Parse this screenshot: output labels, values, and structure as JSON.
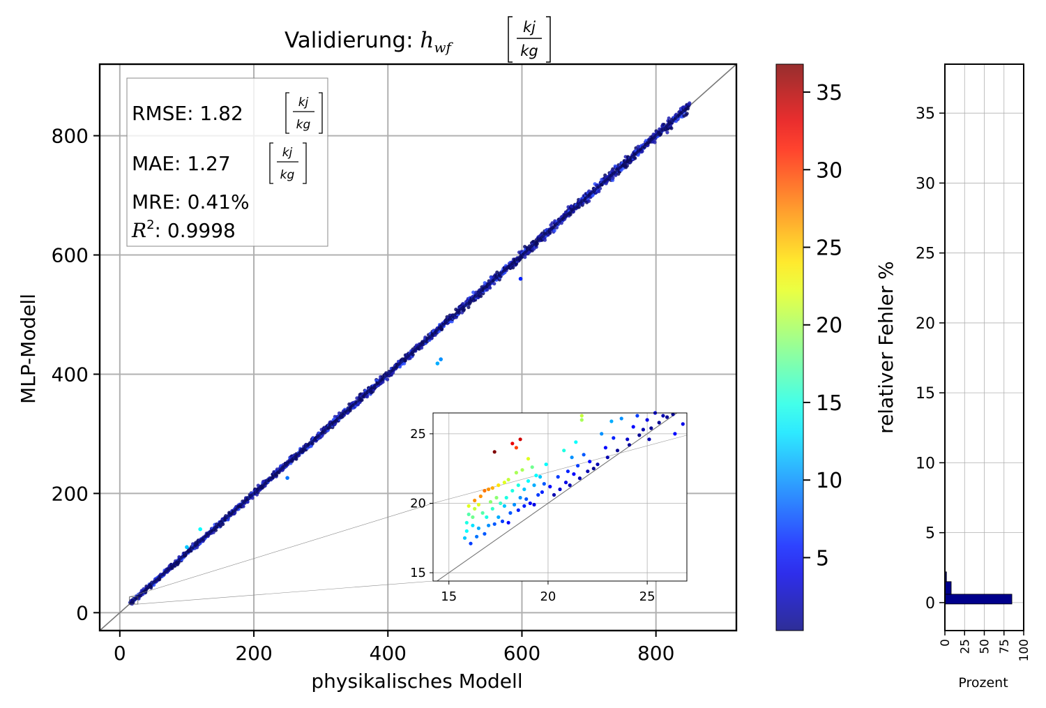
{
  "chart_data": [
    {
      "type": "scatter",
      "title": "Validierung: ",
      "title_symbol": "h",
      "title_subscript": "wf",
      "unit_numerator": "kj",
      "unit_denominator": "kg",
      "xlabel": "physikalisches Modell",
      "ylabel": "MLP-Modell",
      "xlim": [
        -30,
        920
      ],
      "ylim": [
        -30,
        920
      ],
      "xticks": [
        0,
        200,
        400,
        600,
        800
      ],
      "yticks": [
        0,
        200,
        400,
        600,
        800
      ],
      "grid": true,
      "reference_line": "y = x",
      "color_encoding": "relativer Fehler %",
      "colormap": "jet",
      "point_color": "#1f1fb0",
      "point_color_light": "#2f4fff",
      "point_color_dark": "#0b0b66",
      "x_range_of_points": [
        15,
        850
      ],
      "outliers": [
        {
          "x": 474,
          "y": 418,
          "error": 11
        },
        {
          "x": 479,
          "y": 425,
          "error": 10
        },
        {
          "x": 598,
          "y": 560,
          "error": 6
        },
        {
          "x": 250,
          "y": 226,
          "error": 9
        },
        {
          "x": 120,
          "y": 140,
          "error": 14
        },
        {
          "x": 100,
          "y": 110,
          "error": 12
        }
      ],
      "metrics_box": {
        "rmse_label": "RMSE: 1.82",
        "mae_label": "MAE: 1.27",
        "mre_label": "MRE: 0.41%",
        "r2_symbol": "R",
        "r2_exp": "2",
        "r2_label": ": 0.9998"
      }
    },
    {
      "type": "scatter",
      "role": "inset",
      "xlim": [
        14.2,
        27
      ],
      "ylim": [
        14.4,
        26.5
      ],
      "xticks": [
        15,
        20,
        25
      ],
      "yticks": [
        15,
        20,
        25
      ],
      "grid": true,
      "reference_line": "y = x",
      "points": [
        {
          "x": 15.8,
          "y": 17.5,
          "e": 12
        },
        {
          "x": 15.9,
          "y": 18.0,
          "e": 14
        },
        {
          "x": 15.9,
          "y": 18.6,
          "e": 15
        },
        {
          "x": 16.0,
          "y": 19.2,
          "e": 17
        },
        {
          "x": 16.0,
          "y": 19.8,
          "e": 22
        },
        {
          "x": 16.1,
          "y": 17.1,
          "e": 7
        },
        {
          "x": 16.2,
          "y": 18.4,
          "e": 13
        },
        {
          "x": 16.2,
          "y": 19.0,
          "e": 18
        },
        {
          "x": 16.3,
          "y": 20.2,
          "e": 27
        },
        {
          "x": 16.3,
          "y": 19.6,
          "e": 21
        },
        {
          "x": 16.4,
          "y": 17.6,
          "e": 9
        },
        {
          "x": 16.5,
          "y": 18.2,
          "e": 11
        },
        {
          "x": 16.5,
          "y": 19.9,
          "e": 22
        },
        {
          "x": 16.6,
          "y": 20.5,
          "e": 27
        },
        {
          "x": 16.7,
          "y": 19.3,
          "e": 17
        },
        {
          "x": 16.8,
          "y": 17.8,
          "e": 8
        },
        {
          "x": 16.8,
          "y": 20.9,
          "e": 28
        },
        {
          "x": 16.9,
          "y": 19.0,
          "e": 15
        },
        {
          "x": 17.0,
          "y": 21.0,
          "e": 27
        },
        {
          "x": 17.0,
          "y": 18.4,
          "e": 10
        },
        {
          "x": 17.1,
          "y": 20.1,
          "e": 19
        },
        {
          "x": 17.2,
          "y": 19.6,
          "e": 16
        },
        {
          "x": 17.2,
          "y": 21.1,
          "e": 26
        },
        {
          "x": 17.3,
          "y": 18.5,
          "e": 8
        },
        {
          "x": 17.3,
          "y": 23.7,
          "e": 37
        },
        {
          "x": 17.4,
          "y": 20.4,
          "e": 19
        },
        {
          "x": 17.5,
          "y": 19.0,
          "e": 11
        },
        {
          "x": 17.5,
          "y": 21.3,
          "e": 24
        },
        {
          "x": 17.6,
          "y": 20.0,
          "e": 16
        },
        {
          "x": 17.7,
          "y": 18.7,
          "e": 7
        },
        {
          "x": 17.8,
          "y": 21.5,
          "e": 22
        },
        {
          "x": 17.8,
          "y": 19.8,
          "e": 12
        },
        {
          "x": 17.9,
          "y": 20.4,
          "e": 15
        },
        {
          "x": 18.0,
          "y": 18.6,
          "e": 5
        },
        {
          "x": 18.0,
          "y": 21.7,
          "e": 21
        },
        {
          "x": 18.1,
          "y": 19.3,
          "e": 8
        },
        {
          "x": 18.2,
          "y": 24.3,
          "e": 33
        },
        {
          "x": 18.2,
          "y": 20.9,
          "e": 15
        },
        {
          "x": 18.3,
          "y": 19.9,
          "e": 10
        },
        {
          "x": 18.4,
          "y": 22.2,
          "e": 20
        },
        {
          "x": 18.4,
          "y": 24.0,
          "e": 30
        },
        {
          "x": 18.5,
          "y": 19.5,
          "e": 6
        },
        {
          "x": 18.5,
          "y": 21.3,
          "e": 15
        },
        {
          "x": 18.6,
          "y": 24.6,
          "e": 34
        },
        {
          "x": 18.6,
          "y": 20.4,
          "e": 10
        },
        {
          "x": 18.7,
          "y": 22.4,
          "e": 20
        },
        {
          "x": 18.8,
          "y": 19.8,
          "e": 6
        },
        {
          "x": 18.8,
          "y": 21.0,
          "e": 12
        },
        {
          "x": 18.9,
          "y": 20.3,
          "e": 8
        },
        {
          "x": 19.0,
          "y": 23.2,
          "e": 22
        },
        {
          "x": 19.0,
          "y": 21.6,
          "e": 14
        },
        {
          "x": 19.1,
          "y": 20.0,
          "e": 5
        },
        {
          "x": 19.2,
          "y": 22.6,
          "e": 18
        },
        {
          "x": 19.3,
          "y": 21.3,
          "e": 11
        },
        {
          "x": 19.3,
          "y": 19.9,
          "e": 4
        },
        {
          "x": 19.4,
          "y": 22.0,
          "e": 14
        },
        {
          "x": 19.5,
          "y": 20.6,
          "e": 7
        },
        {
          "x": 19.6,
          "y": 21.9,
          "e": 12
        },
        {
          "x": 19.7,
          "y": 20.8,
          "e": 6
        },
        {
          "x": 19.8,
          "y": 21.4,
          "e": 8
        },
        {
          "x": 19.9,
          "y": 22.8,
          "e": 14
        },
        {
          "x": 20.1,
          "y": 21.2,
          "e": 5
        },
        {
          "x": 20.3,
          "y": 20.6,
          "e": 2
        },
        {
          "x": 20.5,
          "y": 21.9,
          "e": 7
        },
        {
          "x": 20.6,
          "y": 21.0,
          "e": 3
        },
        {
          "x": 20.8,
          "y": 23.8,
          "e": 15
        },
        {
          "x": 20.9,
          "y": 21.5,
          "e": 4
        },
        {
          "x": 21.0,
          "y": 22.3,
          "e": 6
        },
        {
          "x": 21.1,
          "y": 21.3,
          "e": 2
        },
        {
          "x": 21.2,
          "y": 23.3,
          "e": 10
        },
        {
          "x": 21.3,
          "y": 22.1,
          "e": 5
        },
        {
          "x": 21.4,
          "y": 24.4,
          "e": 14
        },
        {
          "x": 21.5,
          "y": 22.7,
          "e": 7
        },
        {
          "x": 21.6,
          "y": 21.8,
          "e": 2
        },
        {
          "x": 21.7,
          "y": 26.0,
          "e": 20
        },
        {
          "x": 21.7,
          "y": 26.3,
          "e": 21
        },
        {
          "x": 21.8,
          "y": 23.5,
          "e": 8
        },
        {
          "x": 22.0,
          "y": 22.3,
          "e": 2
        },
        {
          "x": 22.1,
          "y": 23.0,
          "e": 5
        },
        {
          "x": 22.3,
          "y": 22.5,
          "e": 1
        },
        {
          "x": 22.5,
          "y": 22.8,
          "e": 2
        },
        {
          "x": 22.7,
          "y": 25.0,
          "e": 10
        },
        {
          "x": 22.9,
          "y": 24.0,
          "e": 5
        },
        {
          "x": 23.0,
          "y": 23.3,
          "e": 2
        },
        {
          "x": 23.2,
          "y": 25.9,
          "e": 11
        },
        {
          "x": 23.3,
          "y": 24.7,
          "e": 6
        },
        {
          "x": 23.5,
          "y": 23.8,
          "e": 1
        },
        {
          "x": 23.7,
          "y": 26.1,
          "e": 10
        },
        {
          "x": 24.0,
          "y": 24.6,
          "e": 3
        },
        {
          "x": 24.1,
          "y": 24.2,
          "e": 1
        },
        {
          "x": 24.3,
          "y": 25.5,
          "e": 5
        },
        {
          "x": 24.5,
          "y": 26.3,
          "e": 7
        },
        {
          "x": 24.6,
          "y": 24.9,
          "e": 1
        },
        {
          "x": 24.8,
          "y": 25.3,
          "e": 2
        },
        {
          "x": 25.0,
          "y": 26.0,
          "e": 4
        },
        {
          "x": 25.2,
          "y": 25.4,
          "e": 1
        },
        {
          "x": 25.4,
          "y": 26.5,
          "e": 4
        },
        {
          "x": 25.6,
          "y": 25.8,
          "e": 1
        },
        {
          "x": 25.8,
          "y": 26.3,
          "e": 2
        },
        {
          "x": 26.0,
          "y": 26.2,
          "e": 1
        },
        {
          "x": 26.3,
          "y": 26.4,
          "e": 1
        },
        {
          "x": 26.4,
          "y": 25.0,
          "e": 5
        },
        {
          "x": 26.8,
          "y": 25.7,
          "e": 4
        },
        {
          "x": 25.1,
          "y": 24.6,
          "e": 2
        },
        {
          "x": 26.6,
          "y": 26.7,
          "e": 1
        }
      ]
    },
    {
      "type": "heatmap",
      "role": "colorbar",
      "colormap": "jet",
      "range": [
        0.3,
        36.8
      ],
      "ticks": [
        5,
        10,
        15,
        20,
        25,
        30,
        35
      ],
      "label": "relativer Fehler %"
    },
    {
      "type": "bar",
      "role": "histogram",
      "orientation": "horizontal",
      "xlabel": "Prozent",
      "xlim": [
        0,
        100
      ],
      "ylim": [
        -2,
        38.5
      ],
      "xticks": [
        0,
        25,
        50,
        75,
        100
      ],
      "yticks": [
        0,
        5,
        10,
        15,
        20,
        25,
        30,
        35
      ],
      "grid": true,
      "bar_color": "#00008b",
      "bins": [
        {
          "y0": -0.1,
          "y1": 0.6,
          "value": 85
        },
        {
          "y0": 0.6,
          "y1": 1.5,
          "value": 8
        },
        {
          "y0": 1.5,
          "y1": 2.2,
          "value": 2
        }
      ]
    }
  ]
}
